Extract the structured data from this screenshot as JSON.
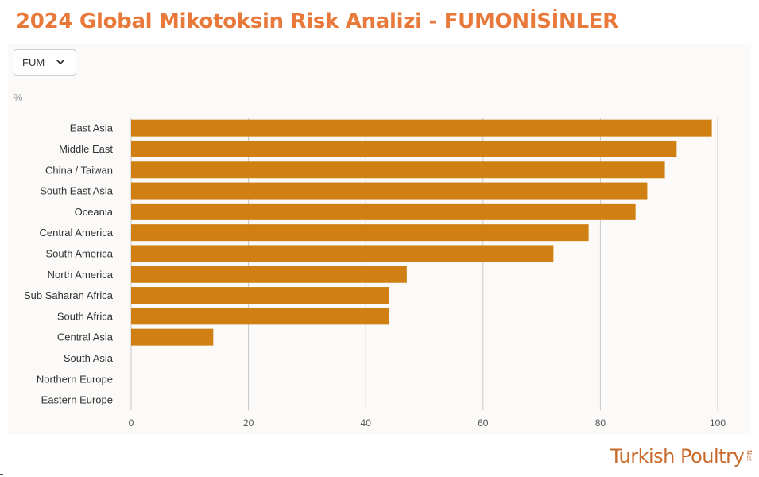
{
  "page": {
    "title": "2024 Global Mikotoksin Risk Analizi  - FUMONİSİNLER",
    "filter": {
      "selected": "FUM",
      "icon": "chevron-down-icon"
    },
    "unit_label": "%",
    "logo": {
      "text": "Turkish Poultry",
      "suffix": "Net"
    }
  },
  "colors": {
    "bar": "#d08013",
    "title": "#e8793a",
    "grid": "#c8c8c8",
    "logo": "#c86a2c"
  },
  "chart_data": {
    "type": "bar",
    "orientation": "horizontal",
    "title": "2024 Global Mikotoksin Risk Analizi  - FUMONİSİNLER",
    "xlabel": "",
    "ylabel": "",
    "unit": "%",
    "categories": [
      "East Asia",
      "Middle East",
      "China / Taiwan",
      "South East Asia",
      "Oceania",
      "Central America",
      "South America",
      "North America",
      "Sub Saharan Africa",
      "South Africa",
      "Central Asia",
      "South Asia",
      "Northern Europe",
      "Eastern Europe"
    ],
    "values": [
      99,
      93,
      91,
      88,
      86,
      78,
      72,
      47,
      44,
      44,
      14,
      0,
      0,
      0
    ],
    "xlim": [
      0,
      100
    ],
    "xticks": [
      0,
      20,
      40,
      60,
      80,
      100
    ],
    "grid": "vertical",
    "legend": "none"
  }
}
